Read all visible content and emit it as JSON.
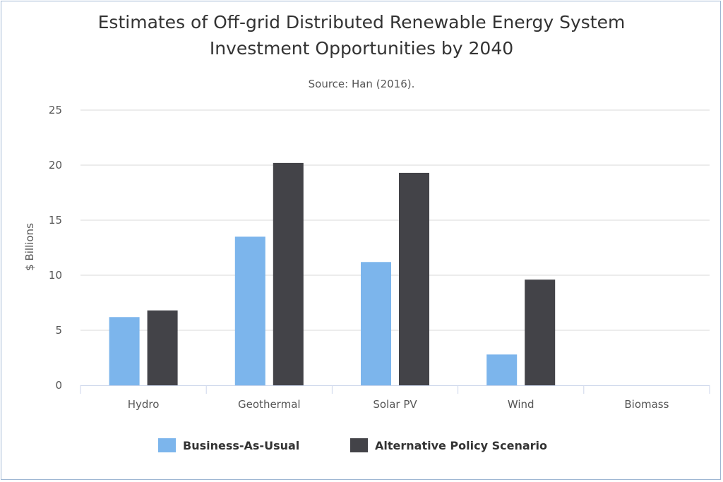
{
  "chart_data": {
    "type": "bar",
    "title_lines": [
      "Estimates of Off-grid Distributed Renewable Energy System",
      "Investment Opportunities by 2040"
    ],
    "subtitle": "Source: Han (2016).",
    "xlabel": "",
    "ylabel": "$ Billions",
    "ylim": [
      0,
      25
    ],
    "yticks": [
      0,
      5,
      10,
      15,
      20,
      25
    ],
    "grid": true,
    "legend_position": "bottom-center",
    "categories": [
      "Hydro",
      "Geothermal",
      "Solar PV",
      "Wind",
      "Biomass"
    ],
    "series": [
      {
        "name": "Business-As-Usual",
        "color": "#7cb5ec",
        "values": [
          6.2,
          13.5,
          11.2,
          2.8,
          0
        ]
      },
      {
        "name": "Alternative Policy Scenario",
        "color": "#434348",
        "values": [
          6.8,
          20.2,
          19.3,
          9.6,
          0
        ]
      }
    ]
  }
}
